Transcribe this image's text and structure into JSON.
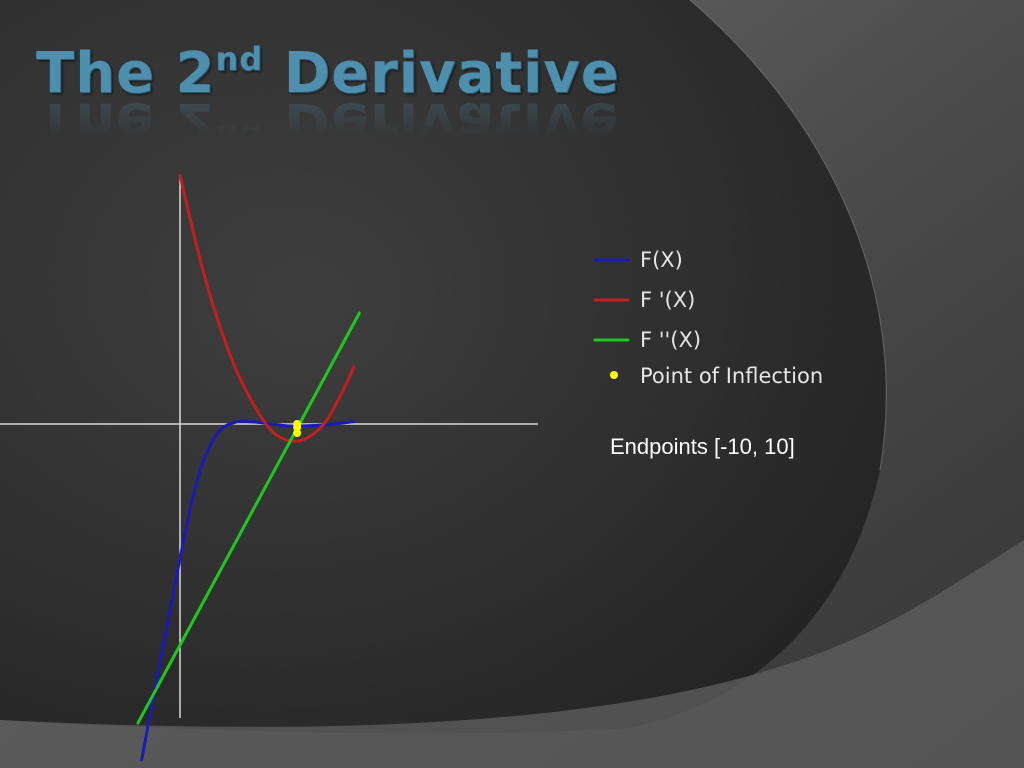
{
  "slide": {
    "title_main": "The 2",
    "title_sup": "nd",
    "title_rest": " Derivative",
    "caption": "Endpoints [-10, 10]",
    "colors": {
      "title": "#4f8fae",
      "background_dark": "#2e2e2e",
      "background_light": "#6a6a6a",
      "text": "#ffffff"
    }
  },
  "chart_data": {
    "type": "line",
    "title": "",
    "xlabel": "",
    "ylabel": "",
    "xlim": [
      -10,
      10
    ],
    "grid": false,
    "legend_position": "right",
    "series": [
      {
        "name": "F(X)",
        "color": "#1a1ab4",
        "expr": "cubic",
        "x": [
          -2.1,
          0,
          1,
          2,
          3,
          4,
          5,
          6,
          7,
          8,
          9.5
        ],
        "y": [
          -100,
          -40,
          -15.6,
          -3.1,
          0.5,
          0.6,
          0,
          -0.6,
          -0.5,
          -0.2,
          0.7
        ]
      },
      {
        "name": "F '(X)",
        "color": "#c41e1e",
        "expr": "quadratic",
        "x": [
          0,
          1,
          2,
          3,
          4,
          5,
          6,
          7,
          8,
          9,
          9.5
        ],
        "y": [
          74,
          51,
          32,
          17,
          6,
          -2,
          -5,
          -4,
          1,
          11,
          17
        ]
      },
      {
        "name": "F ''(X)",
        "color": "#1ec81e",
        "expr": "linear",
        "x": [
          -2.3,
          9.8
        ],
        "y": [
          -89,
          33
        ]
      },
      {
        "name": "Point of Inflection",
        "color": "#ffff00",
        "type": "scatter",
        "x": [
          6.4,
          6.4,
          6.4
        ],
        "y": [
          0,
          -1.0,
          -2.7
        ]
      }
    ]
  }
}
